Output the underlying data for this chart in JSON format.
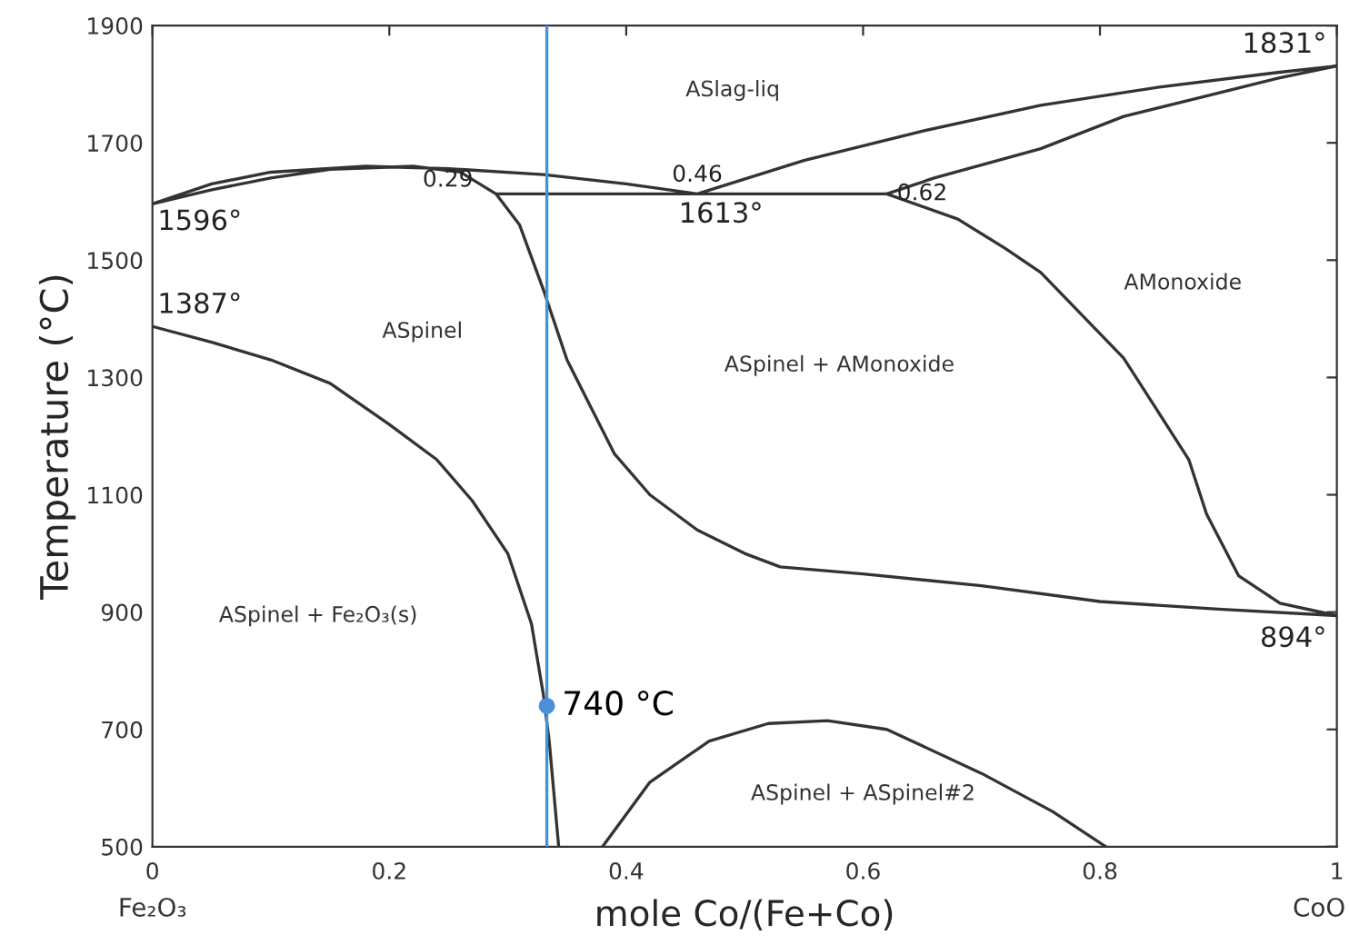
{
  "chart_data": {
    "type": "line",
    "xlabel": "mole Co/(Fe+Co)",
    "ylabel": "Temperature (°C)",
    "xlim": [
      0,
      1
    ],
    "ylim": [
      500,
      1900
    ],
    "xticks": [
      0,
      0.2,
      0.4,
      0.6,
      0.8,
      1
    ],
    "yticks": [
      500,
      700,
      900,
      1100,
      1300,
      1500,
      1700,
      1900
    ],
    "grid": false,
    "marker": "none",
    "line_style": "solid",
    "series": [
      {
        "color": "#333333",
        "x": [
          0.29,
          0.26,
          0.22,
          0.15,
          0.1,
          0.05,
          0,
          0.05,
          0.1,
          0.18,
          0.25,
          0.33,
          0.4,
          0.46,
          0.29,
          0.31,
          0.33,
          0.35,
          0.37,
          0.39,
          0.42,
          0.46,
          0.5,
          0.53,
          0.6,
          0.7,
          0.8,
          0.9,
          1,
          0.952,
          0.917,
          0.89,
          0.875,
          0.82,
          0.75,
          0.72,
          0.68,
          0.62,
          0.66,
          0.75,
          0.82,
          0.9,
          0.95,
          1,
          0.95,
          0.85,
          0.75,
          0.65,
          0.55,
          0.46,
          0.62
        ],
        "values": [
          1613,
          1650,
          1660,
          1655,
          1640,
          1620,
          1596,
          1630,
          1650,
          1660,
          1656,
          1646,
          1630,
          1613,
          1613,
          1560,
          1450,
          1330,
          1250,
          1170,
          1100,
          1040,
          1000,
          977,
          965,
          945,
          918,
          905,
          894,
          915,
          962,
          1067,
          1160,
          1333,
          1479,
          1520,
          1570,
          1613,
          1640,
          1690,
          1745,
          1785,
          1810,
          1831,
          1820,
          1795,
          1764,
          1720,
          1670,
          1613,
          1613
        ]
      },
      {
        "color": "#333333",
        "x": [
          0,
          0.05,
          0.1,
          0.15,
          0.2,
          0.24,
          0.27,
          0.3,
          0.32,
          0.33,
          0.335,
          0.343
        ],
        "values": [
          1387,
          1360,
          1330,
          1290,
          1220,
          1160,
          1090,
          1000,
          880,
          760,
          680,
          500
        ]
      },
      {
        "color": "#333333",
        "x": [
          0.38,
          0.42,
          0.47,
          0.52,
          0.57,
          0.62,
          0.7,
          0.76,
          0.805
        ],
        "values": [
          500,
          610,
          680,
          710,
          715,
          700,
          625,
          560,
          500
        ]
      },
      {
        "type": "scatter",
        "marker": "circle",
        "color": "#4a90d9",
        "x": [
          0.333
        ],
        "values": [
          740
        ]
      }
    ],
    "ref_lines": [
      {
        "axis": "x",
        "value": 0.333,
        "color": "#4a90d9"
      }
    ],
    "annotations": [
      {
        "text": "1596°",
        "x": 0,
        "y": 1596
      },
      {
        "text": "1387°",
        "x": 0,
        "y": 1387
      },
      {
        "text": "0.29",
        "x": 0.29,
        "y": 1613
      },
      {
        "text": "0.46",
        "x": 0.46,
        "y": 1613
      },
      {
        "text": "1613°",
        "x": 0.48,
        "y": 1613
      },
      {
        "text": "0.62",
        "x": 0.62,
        "y": 1613
      },
      {
        "text": "1831°",
        "x": 1,
        "y": 1831
      },
      {
        "text": "894°",
        "x": 1,
        "y": 894
      },
      {
        "text": "740 °C",
        "x": 0.333,
        "y": 740
      },
      "ASlag-liq",
      "ASpinel",
      "ASpinel + AMonoxide",
      "AMonoxide",
      "ASpinel + Fe₂O₃(s)",
      "ASpinel + ASpinel#2",
      "Fe₂O₃",
      "CoO"
    ]
  }
}
